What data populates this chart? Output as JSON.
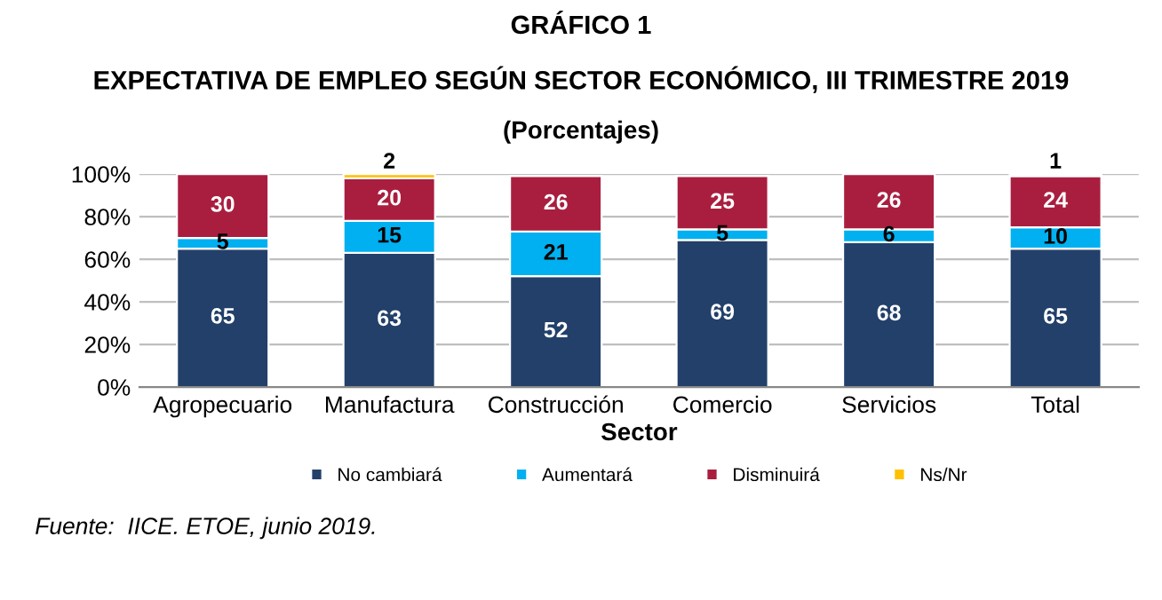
{
  "chart_data": {
    "type": "bar",
    "title": "GRÁFICO 1",
    "subtitle": "EXPECTATIVA DE EMPLEO SEGÚN SECTOR ECONÓMICO, III TRIMESTRE 2019",
    "annotations": [
      "(Porcentajes)",
      "Fuente:  IICE. ETOE, junio 2019."
    ],
    "xlabel": "Sector",
    "stacked": true,
    "categories": [
      "Agropecuario",
      "Manufactura",
      "Construcción",
      "Comercio",
      "Servicios",
      "Total"
    ],
    "series": [
      {
        "name": "No cambiará",
        "color": "#22406a",
        "values": [
          65,
          63,
          52,
          69,
          68,
          65
        ],
        "value_labels": [
          "65",
          "63",
          "52",
          "69",
          "68",
          "65"
        ]
      },
      {
        "name": "Aumentará",
        "color": "#00b0f0",
        "values": [
          5,
          15,
          21,
          5,
          6,
          10
        ],
        "value_labels": [
          "5",
          "15",
          "21",
          "5",
          "6",
          "10"
        ]
      },
      {
        "name": "Disminuirá",
        "color": "#a91e3f",
        "values": [
          30,
          20,
          26,
          25,
          26,
          24
        ],
        "value_labels": [
          "30",
          "20",
          "26",
          "25",
          "26",
          "24"
        ]
      },
      {
        "name": "Ns/Nr",
        "color": "#ffc000",
        "values": [
          null,
          2,
          null,
          null,
          null,
          1
        ],
        "value_labels": [
          null,
          "2",
          null,
          null,
          null,
          "1"
        ]
      }
    ],
    "ylim": [
      0,
      100
    ],
    "yticks": [
      {
        "value": 0,
        "label": "0%"
      },
      {
        "value": 20,
        "label": "20%"
      },
      {
        "value": 40,
        "label": "40%"
      },
      {
        "value": 60,
        "label": "60%"
      },
      {
        "value": 80,
        "label": "80%"
      },
      {
        "value": 100,
        "label": "100%"
      }
    ],
    "grid": "y",
    "legend": "bottom"
  }
}
